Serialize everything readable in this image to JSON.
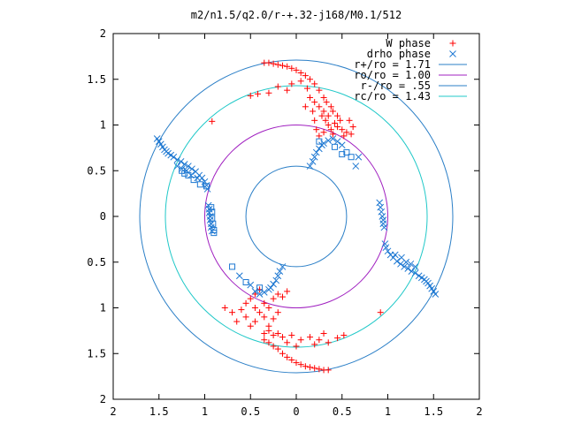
{
  "chart_data": {
    "type": "scatter",
    "title": "m2/n1.5/q2.0/r-+.32-j168/M0.1/512",
    "xlabel": "",
    "ylabel": "",
    "xlim": [
      -2,
      2
    ],
    "ylim": [
      -2,
      2
    ],
    "grid": false,
    "legend_position": "top-right",
    "x_ticks": [
      {
        "value": -2,
        "label": "2"
      },
      {
        "value": -1.5,
        "label": "1.5"
      },
      {
        "value": -1,
        "label": "1"
      },
      {
        "value": -0.5,
        "label": "0.5"
      },
      {
        "value": 0,
        "label": "0"
      },
      {
        "value": 0.5,
        "label": "0.5"
      },
      {
        "value": 1,
        "label": "1"
      },
      {
        "value": 1.5,
        "label": "1.5"
      },
      {
        "value": 2,
        "label": "2"
      }
    ],
    "y_ticks": [
      {
        "value": 2,
        "label": "2"
      },
      {
        "value": 1.5,
        "label": "1.5"
      },
      {
        "value": 1,
        "label": "1"
      },
      {
        "value": 0.5,
        "label": "0.5"
      },
      {
        "value": 0,
        "label": "0"
      },
      {
        "value": -0.5,
        "label": "0.5"
      },
      {
        "value": -1,
        "label": "1"
      },
      {
        "value": -1.5,
        "label": "1.5"
      },
      {
        "value": -2,
        "label": "2"
      }
    ],
    "circles": [
      {
        "name": "r+/ro = 1.71",
        "radius": 1.71,
        "color": "#2b7fc7"
      },
      {
        "name": "ro/ro = 1.00",
        "radius": 1.0,
        "color": "#a020c0"
      },
      {
        "name": "r-/ro = .55",
        "radius": 0.55,
        "color": "#2b7fc7"
      },
      {
        "name": "rc/ro = 1.43",
        "radius": 1.43,
        "color": "#20c8c8"
      }
    ],
    "series": [
      {
        "name": "W phase",
        "marker": "plus",
        "color": "#ff0000",
        "points": [
          [
            -0.35,
            1.68
          ],
          [
            -0.3,
            1.68
          ],
          [
            -0.25,
            1.67
          ],
          [
            -0.2,
            1.66
          ],
          [
            -0.15,
            1.65
          ],
          [
            -0.1,
            1.64
          ],
          [
            -0.05,
            1.62
          ],
          [
            0,
            1.6
          ],
          [
            0.05,
            1.57
          ],
          [
            0.1,
            1.54
          ],
          [
            0.15,
            1.5
          ],
          [
            0.2,
            1.45
          ],
          [
            0.25,
            1.38
          ],
          [
            0.3,
            1.3
          ],
          [
            -0.5,
            1.32
          ],
          [
            -0.42,
            1.34
          ],
          [
            -0.3,
            1.35
          ],
          [
            -0.2,
            1.42
          ],
          [
            -0.1,
            1.38
          ],
          [
            -0.05,
            1.45
          ],
          [
            0.05,
            1.48
          ],
          [
            0.12,
            1.4
          ],
          [
            0.15,
            1.3
          ],
          [
            0.2,
            1.25
          ],
          [
            0.25,
            1.2
          ],
          [
            0.3,
            1.15
          ],
          [
            0.28,
            1.1
          ],
          [
            0.32,
            1.05
          ],
          [
            0.35,
            1.0
          ],
          [
            0.38,
            0.95
          ],
          [
            0.4,
            0.9
          ],
          [
            0.42,
            1.02
          ],
          [
            0.45,
            0.98
          ],
          [
            0.48,
            1.05
          ],
          [
            0.5,
            0.95
          ],
          [
            0.52,
            0.88
          ],
          [
            0.55,
            0.92
          ],
          [
            0.6,
            0.9
          ],
          [
            0.62,
            0.98
          ],
          [
            0.58,
            1.05
          ],
          [
            0.35,
            1.1
          ],
          [
            0.4,
            1.15
          ],
          [
            0.45,
            1.1
          ],
          [
            0.3,
            0.92
          ],
          [
            0.25,
            0.88
          ],
          [
            0.22,
            0.95
          ],
          [
            0.2,
            1.05
          ],
          [
            0.18,
            1.15
          ],
          [
            0.1,
            1.2
          ],
          [
            0.38,
            1.2
          ],
          [
            0.33,
            1.25
          ],
          [
            -0.92,
            1.04
          ],
          [
            0.35,
            -1.68
          ],
          [
            0.3,
            -1.68
          ],
          [
            0.25,
            -1.67
          ],
          [
            0.2,
            -1.66
          ],
          [
            0.15,
            -1.65
          ],
          [
            0.1,
            -1.64
          ],
          [
            0.05,
            -1.62
          ],
          [
            0,
            -1.6
          ],
          [
            -0.05,
            -1.57
          ],
          [
            -0.1,
            -1.54
          ],
          [
            -0.15,
            -1.5
          ],
          [
            -0.2,
            -1.45
          ],
          [
            -0.25,
            -1.42
          ],
          [
            -0.3,
            -1.38
          ],
          [
            -0.35,
            -1.35
          ],
          [
            -0.5,
            -0.9
          ],
          [
            -0.45,
            -0.85
          ],
          [
            -0.4,
            -0.8
          ],
          [
            -0.35,
            -0.95
          ],
          [
            -0.3,
            -1.0
          ],
          [
            -0.25,
            -0.9
          ],
          [
            -0.2,
            -0.85
          ],
          [
            -0.15,
            -0.88
          ],
          [
            -0.1,
            -0.82
          ],
          [
            -0.2,
            -1.05
          ],
          [
            -0.25,
            -1.12
          ],
          [
            -0.3,
            -1.2
          ],
          [
            -0.35,
            -1.1
          ],
          [
            -0.4,
            -1.05
          ],
          [
            -0.45,
            -1.15
          ],
          [
            -0.5,
            -1.2
          ],
          [
            -0.55,
            -1.1
          ],
          [
            -0.6,
            -1.02
          ],
          [
            -0.65,
            -1.15
          ],
          [
            -0.7,
            -1.05
          ],
          [
            -0.78,
            -1.0
          ],
          [
            -0.35,
            -1.28
          ],
          [
            -0.25,
            -1.3
          ],
          [
            -0.15,
            -1.32
          ],
          [
            -0.05,
            -1.3
          ],
          [
            0.05,
            -1.35
          ],
          [
            0.15,
            -1.32
          ],
          [
            0.25,
            -1.35
          ],
          [
            0.3,
            -1.28
          ],
          [
            0.35,
            -1.38
          ],
          [
            0.45,
            -1.33
          ],
          [
            0.52,
            -1.3
          ],
          [
            0.2,
            -1.4
          ],
          [
            0.0,
            -1.42
          ],
          [
            -0.1,
            -1.38
          ],
          [
            -0.2,
            -1.28
          ],
          [
            -0.3,
            -1.25
          ],
          [
            -0.55,
            -0.95
          ],
          [
            -0.45,
            -1.0
          ],
          [
            0.92,
            -1.05
          ]
        ]
      },
      {
        "name": "drho phase",
        "marker": "x",
        "color": "#1e78d2",
        "points": [
          [
            -1.52,
            0.85
          ],
          [
            -1.5,
            0.82
          ],
          [
            -1.48,
            0.79
          ],
          [
            -1.46,
            0.76
          ],
          [
            -1.44,
            0.73
          ],
          [
            -1.42,
            0.71
          ],
          [
            -1.4,
            0.69
          ],
          [
            -1.37,
            0.67
          ],
          [
            -1.34,
            0.65
          ],
          [
            -1.3,
            0.62
          ],
          [
            -1.26,
            0.6
          ],
          [
            -1.22,
            0.57
          ],
          [
            -1.18,
            0.55
          ],
          [
            -1.14,
            0.52
          ],
          [
            -1.1,
            0.49
          ],
          [
            -1.06,
            0.45
          ],
          [
            -1.03,
            0.42
          ],
          [
            -1.0,
            0.38
          ],
          [
            -0.98,
            0.34
          ],
          [
            -0.97,
            0.3
          ],
          [
            -1.3,
            0.55
          ],
          [
            -1.25,
            0.52
          ],
          [
            -1.2,
            0.5
          ],
          [
            -1.15,
            0.45
          ],
          [
            -1.08,
            0.42
          ],
          [
            -0.96,
            0.12
          ],
          [
            -0.95,
            0.08
          ],
          [
            -0.95,
            0.04
          ],
          [
            -0.94,
            0.0
          ],
          [
            -0.94,
            -0.04
          ],
          [
            -0.93,
            -0.08
          ],
          [
            -0.93,
            -0.12
          ],
          [
            -0.92,
            -0.16
          ],
          [
            0.15,
            0.55
          ],
          [
            0.18,
            0.6
          ],
          [
            0.2,
            0.65
          ],
          [
            0.22,
            0.7
          ],
          [
            0.25,
            0.74
          ],
          [
            0.28,
            0.78
          ],
          [
            0.3,
            0.8
          ],
          [
            0.35,
            0.83
          ],
          [
            0.4,
            0.85
          ],
          [
            0.45,
            0.82
          ],
          [
            0.5,
            0.78
          ],
          [
            0.65,
            0.55
          ],
          [
            0.68,
            0.65
          ],
          [
            1.52,
            -0.85
          ],
          [
            1.5,
            -0.82
          ],
          [
            1.48,
            -0.79
          ],
          [
            1.46,
            -0.76
          ],
          [
            1.44,
            -0.73
          ],
          [
            1.42,
            -0.71
          ],
          [
            1.4,
            -0.69
          ],
          [
            1.37,
            -0.67
          ],
          [
            1.34,
            -0.65
          ],
          [
            1.3,
            -0.62
          ],
          [
            1.26,
            -0.6
          ],
          [
            1.22,
            -0.57
          ],
          [
            1.18,
            -0.55
          ],
          [
            1.14,
            -0.52
          ],
          [
            1.1,
            -0.49
          ],
          [
            1.06,
            -0.45
          ],
          [
            1.03,
            -0.42
          ],
          [
            1.0,
            -0.38
          ],
          [
            0.98,
            -0.34
          ],
          [
            0.97,
            -0.3
          ],
          [
            1.3,
            -0.55
          ],
          [
            1.25,
            -0.52
          ],
          [
            1.2,
            -0.5
          ],
          [
            1.15,
            -0.45
          ],
          [
            1.08,
            -0.42
          ],
          [
            0.96,
            -0.12
          ],
          [
            0.95,
            -0.08
          ],
          [
            0.95,
            -0.04
          ],
          [
            0.94,
            0.0
          ],
          [
            0.93,
            0.05
          ],
          [
            0.92,
            0.1
          ],
          [
            0.91,
            0.15
          ],
          [
            -0.15,
            -0.55
          ],
          [
            -0.18,
            -0.6
          ],
          [
            -0.2,
            -0.65
          ],
          [
            -0.22,
            -0.7
          ],
          [
            -0.25,
            -0.74
          ],
          [
            -0.28,
            -0.78
          ],
          [
            -0.3,
            -0.8
          ],
          [
            -0.35,
            -0.83
          ],
          [
            -0.4,
            -0.85
          ],
          [
            -0.45,
            -0.82
          ],
          [
            -0.62,
            -0.65
          ],
          [
            -0.5,
            -0.75
          ]
        ]
      },
      {
        "name": "",
        "marker": "square",
        "color": "#1e78d2",
        "points": [
          [
            -1.25,
            0.5
          ],
          [
            -1.22,
            0.47
          ],
          [
            -1.18,
            0.45
          ],
          [
            -1.12,
            0.4
          ],
          [
            -1.05,
            0.35
          ],
          [
            -0.98,
            0.33
          ],
          [
            -0.93,
            0.1
          ],
          [
            -0.92,
            0.05
          ],
          [
            -0.92,
            -0.02
          ],
          [
            -0.91,
            -0.08
          ],
          [
            -0.9,
            -0.15
          ],
          [
            -0.9,
            -0.18
          ],
          [
            0.42,
            0.76
          ],
          [
            0.5,
            0.68
          ],
          [
            0.55,
            0.7
          ],
          [
            0.25,
            0.82
          ],
          [
            0.6,
            0.65
          ],
          [
            -0.7,
            -0.55
          ],
          [
            -0.55,
            -0.72
          ],
          [
            -0.4,
            -0.78
          ]
        ]
      }
    ]
  }
}
